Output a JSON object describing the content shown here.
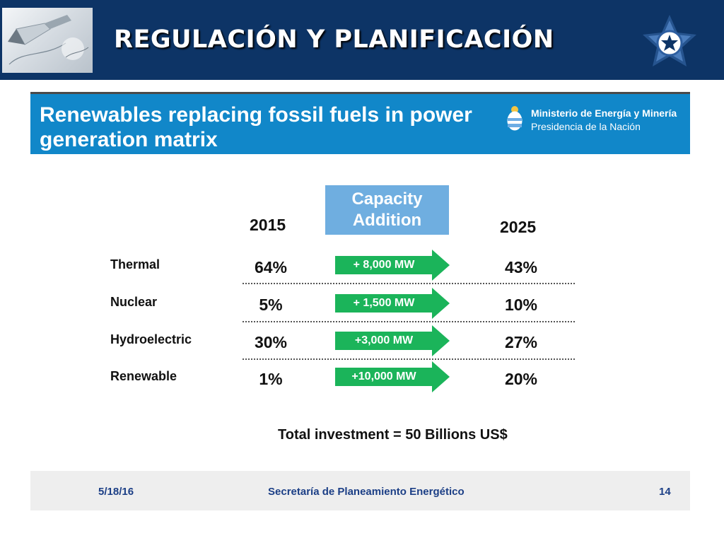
{
  "header": {
    "title": "REGULACIÓN Y PLANIFICACIÓN",
    "colors": {
      "band": "#0d3466",
      "title": "#ffffff"
    }
  },
  "slide": {
    "heading": "Renewables replacing fossil fuels in power generation matrix",
    "ministry": {
      "line1": "Ministerio de Energía y Minería",
      "line2": "Presidencia de la Nación"
    },
    "capacity_header": "Capacity Addition",
    "year_left": "2015",
    "year_right": "2025",
    "rows": [
      {
        "label": "Thermal",
        "share_2015": "64%",
        "addition": "+ 8,000 MW",
        "share_2025": "43%"
      },
      {
        "label": "Nuclear",
        "share_2015": "5%",
        "addition": "+ 1,500 MW",
        "share_2025": "10%"
      },
      {
        "label": "Hydroelectric",
        "share_2015": "30%",
        "addition": "+3,000 MW",
        "share_2025": "27%"
      },
      {
        "label": "Renewable",
        "share_2015": "1%",
        "addition": "+10,000 MW",
        "share_2025": "20%"
      }
    ],
    "total": "Total investment = 50 Billions US$",
    "colors": {
      "banner": "#1187c9",
      "capacity_box": "#6faee0",
      "arrow": "#1bb45a"
    }
  },
  "footer": {
    "date": "5/18/16",
    "department": "Secretaría de Planeamiento Energético",
    "page": "14"
  }
}
